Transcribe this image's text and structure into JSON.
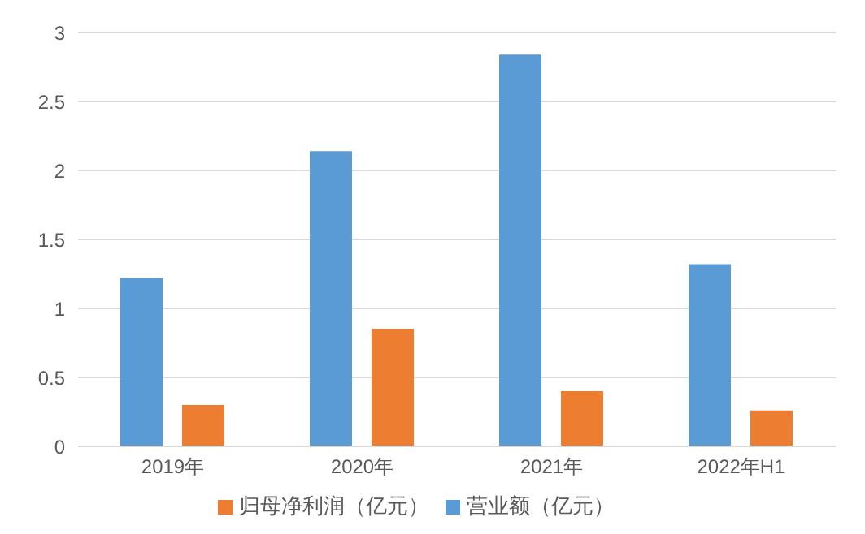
{
  "chart_data": {
    "type": "bar",
    "categories": [
      "2019年",
      "2020年",
      "2021年",
      "2022年H1"
    ],
    "series": [
      {
        "name": "营业额（亿元）",
        "color": "#5b9bd5",
        "values": [
          1.22,
          2.14,
          2.84,
          1.32
        ]
      },
      {
        "name": "归母净利润（亿元）",
        "color": "#ed7d31",
        "values": [
          0.3,
          0.85,
          0.4,
          0.26
        ]
      }
    ],
    "ylim": [
      0,
      3
    ],
    "yticks": [
      0,
      0.5,
      1,
      1.5,
      2,
      2.5,
      3
    ],
    "grid": "y",
    "legend": "bottom"
  }
}
